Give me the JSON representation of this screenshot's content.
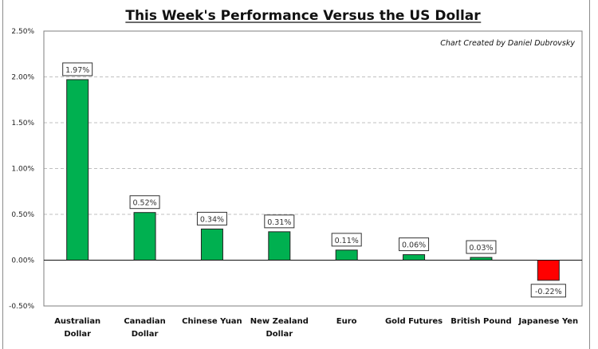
{
  "chart_data": {
    "type": "bar",
    "title": "This Week's Performance Versus the US Dollar",
    "annotation": "Chart Created by Daniel Dubrovsky",
    "xlabel": "",
    "ylabel": "",
    "ylim": [
      -0.5,
      2.5
    ],
    "yticks": [
      -0.5,
      0.0,
      0.5,
      1.0,
      1.5,
      2.0,
      2.5
    ],
    "ytick_labels": [
      "-0.50%",
      "0.00%",
      "0.50%",
      "1.00%",
      "1.50%",
      "2.00%",
      "2.50%"
    ],
    "grid": "horizontal dashed",
    "legend": "none",
    "categories": [
      [
        "Australian",
        "Dollar"
      ],
      [
        "Canadian",
        "Dollar"
      ],
      [
        "Chinese Yuan"
      ],
      [
        "New Zealand",
        "Dollar"
      ],
      [
        "Euro"
      ],
      [
        "Gold Futures"
      ],
      [
        "British Pound"
      ],
      [
        "Japanese Yen"
      ]
    ],
    "values": [
      1.97,
      0.52,
      0.34,
      0.31,
      0.11,
      0.06,
      0.03,
      -0.22
    ],
    "data_labels": [
      "1.97%",
      "0.52%",
      "0.34%",
      "0.31%",
      "0.11%",
      "0.06%",
      "0.03%",
      "-0.22%"
    ],
    "colors": {
      "positive": "#00b050",
      "negative": "#ff0000"
    }
  }
}
